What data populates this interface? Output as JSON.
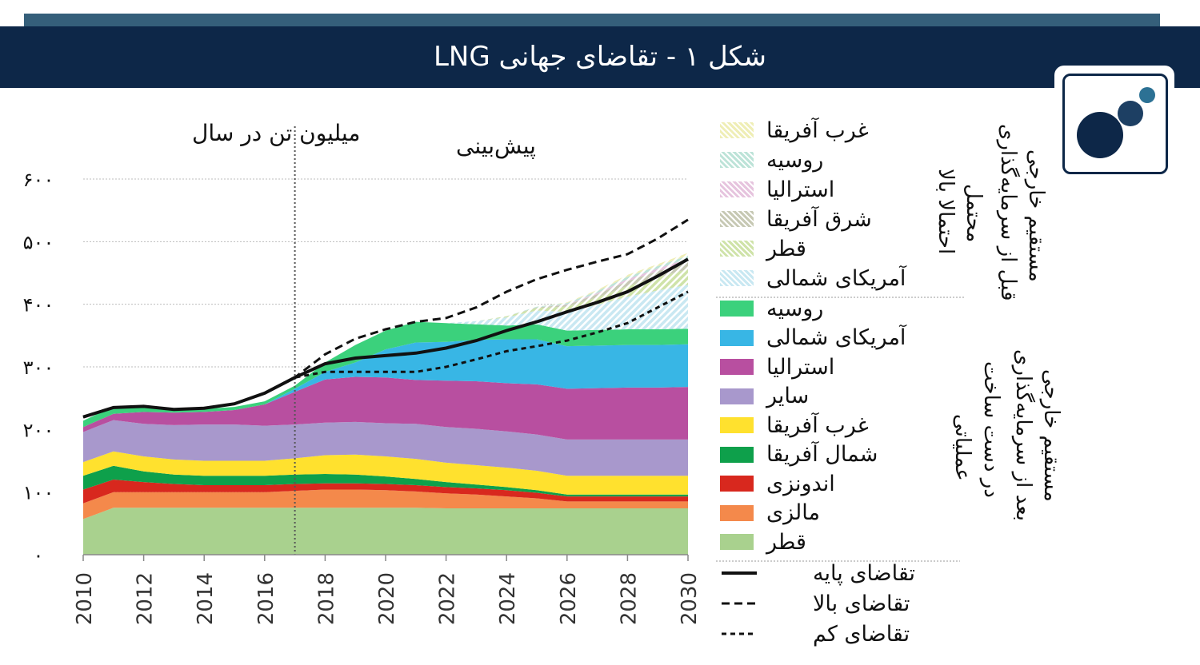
{
  "header": {
    "title": "شکل ۱ - تقاضای جهانی LNG"
  },
  "logo": {
    "name": "publisher-logo"
  },
  "colors": {
    "banner": "#0d2748",
    "accent": "#355f7a"
  },
  "chart_data": {
    "type": "area",
    "title": "شکل ۱ - تقاضای جهانی LNG",
    "ylabel": "میلیون تن در سال",
    "forecast_label": "پیش‌بینی",
    "forecast_start": 2017,
    "ylim": [
      0,
      600
    ],
    "yticks": [
      0,
      100,
      200,
      300,
      400,
      500,
      600
    ],
    "ytick_labels": [
      "۰",
      "۱۰۰",
      "۲۰۰",
      "۳۰۰",
      "۴۰۰",
      "۵۰۰",
      "۶۰۰"
    ],
    "x": [
      2010,
      2011,
      2012,
      2013,
      2014,
      2015,
      2016,
      2017,
      2018,
      2019,
      2020,
      2021,
      2022,
      2023,
      2024,
      2025,
      2026,
      2027,
      2028,
      2029,
      2030
    ],
    "xticks": [
      2010,
      2012,
      2014,
      2016,
      2018,
      2020,
      2022,
      2024,
      2026,
      2028,
      2030
    ],
    "xtick_labels": [
      "2010",
      "2012",
      "2014",
      "2016",
      "2018",
      "2020",
      "2022",
      "2024",
      "2026",
      "2028",
      "2030"
    ],
    "group_labels": {
      "pre_fid_left": "احتمالا بالا",
      "pre_fid_right": "محتمل",
      "pre_fid_outer": [
        "قبل از سرمایه‌گذاری",
        "مستقیم خارجی"
      ],
      "post_fid_left": "عملیاتی",
      "post_fid_right": "در دست ساخت",
      "post_fid_outer": [
        "بعد از سرمایه‌گذاری",
        "مستقیم خارجی"
      ]
    },
    "series": [
      {
        "name": "قطر",
        "group": "operational",
        "color": "#a9d18e",
        "values": [
          57,
          75,
          75,
          75,
          75,
          75,
          75,
          75,
          75,
          75,
          75,
          75,
          74,
          74,
          74,
          74,
          74,
          74,
          74,
          74,
          74
        ]
      },
      {
        "name": "مالزی",
        "group": "operational",
        "color": "#f4894b",
        "values": [
          25,
          25,
          25,
          25,
          25,
          25,
          25,
          27,
          29,
          29,
          28,
          26,
          24,
          22,
          19,
          16,
          11,
          11,
          11,
          11,
          11
        ]
      },
      {
        "name": "اندونزی",
        "group": "operational",
        "color": "#d8281e",
        "values": [
          22,
          20,
          16,
          13,
          11,
          11,
          11,
          11,
          10,
          10,
          10,
          10,
          10,
          10,
          10,
          9,
          8,
          8,
          8,
          8,
          8
        ]
      },
      {
        "name": "شمال آفریقا",
        "group": "operational",
        "color": "#0ea04b",
        "values": [
          22,
          22,
          17,
          15,
          15,
          15,
          15,
          15,
          15,
          14,
          12,
          10,
          8,
          6,
          5,
          4,
          3,
          3,
          3,
          3,
          3
        ]
      },
      {
        "name": "غرب آفریقا",
        "group": "operational",
        "color": "#ffe12e",
        "values": [
          22,
          23,
          24,
          24,
          24,
          24,
          24,
          26,
          30,
          32,
          32,
          32,
          31,
          31,
          31,
          31,
          30,
          30,
          30,
          30,
          30
        ]
      },
      {
        "name": "سایر",
        "group": "operational",
        "color": "#a898cc",
        "values": [
          48,
          50,
          52,
          55,
          58,
          58,
          56,
          54,
          52,
          52,
          53,
          56,
          57,
          58,
          58,
          58,
          58,
          58,
          58,
          58,
          58
        ]
      },
      {
        "name": "استرالیا",
        "group": "operational",
        "color": "#b84fa0",
        "values": [
          8,
          10,
          19,
          20,
          20,
          23,
          34,
          52,
          69,
          72,
          73,
          70,
          74,
          76,
          77,
          80,
          81,
          82,
          83,
          83,
          84
        ]
      },
      {
        "name": "آمریکای شمالی",
        "group": "operational",
        "color": "#38b6e5",
        "values": [
          0,
          0,
          0,
          0,
          0,
          0,
          0,
          5,
          12,
          23,
          45,
          60,
          62,
          66,
          70,
          72,
          68,
          68,
          68,
          68,
          68
        ]
      },
      {
        "name": "روسیه",
        "group": "operational",
        "color": "#3bd17c",
        "values": [
          10,
          12,
          9,
          6,
          5,
          5,
          5,
          5,
          15,
          28,
          30,
          33,
          30,
          25,
          22,
          24,
          25,
          25,
          25,
          25,
          25
        ]
      },
      {
        "name": "آمریکای شمالی",
        "group": "pre_fid",
        "color": "#c9e8f2",
        "hatch": true,
        "values": [
          0,
          0,
          0,
          0,
          0,
          0,
          0,
          0,
          0,
          0,
          0,
          0,
          0,
          5,
          13,
          22,
          30,
          40,
          52,
          62,
          70
        ]
      },
      {
        "name": "قطر",
        "group": "pre_fid",
        "color": "#cfe3a9",
        "hatch": true,
        "values": [
          0,
          0,
          0,
          0,
          0,
          0,
          0,
          0,
          0,
          0,
          0,
          0,
          0,
          0,
          2,
          4,
          8,
          12,
          17,
          21,
          25
        ]
      },
      {
        "name": "شرق آفریقا",
        "group": "pre_fid",
        "color": "#c7c9b4",
        "hatch": true,
        "values": [
          0,
          0,
          0,
          0,
          0,
          0,
          0,
          0,
          0,
          0,
          0,
          0,
          0,
          0,
          0,
          1,
          3,
          5,
          8,
          10,
          12
        ]
      },
      {
        "name": "استرالیا",
        "group": "pre_fid",
        "color": "#e6c4de",
        "hatch": true,
        "values": [
          0,
          0,
          0,
          0,
          0,
          0,
          0,
          0,
          0,
          0,
          0,
          0,
          0,
          0,
          0,
          0,
          1,
          2,
          3,
          4,
          5
        ]
      },
      {
        "name": "روسیه",
        "group": "pre_fid",
        "color": "#bde3d8",
        "hatch": true,
        "values": [
          0,
          0,
          0,
          0,
          0,
          0,
          0,
          0,
          0,
          0,
          0,
          0,
          0,
          0,
          0,
          1,
          2,
          3,
          4,
          4,
          5
        ]
      },
      {
        "name": "غرب آفریقا",
        "group": "pre_fid",
        "color": "#efeeb6",
        "hatch": true,
        "values": [
          0,
          0,
          0,
          0,
          0,
          0,
          0,
          0,
          0,
          0,
          0,
          0,
          0,
          0,
          0,
          0,
          1,
          2,
          3,
          3,
          4
        ]
      }
    ],
    "lines": [
      {
        "name": "تقاضای پایه",
        "style": "solid",
        "values": [
          220,
          235,
          237,
          232,
          234,
          241,
          258,
          283,
          305,
          314,
          318,
          322,
          330,
          342,
          358,
          372,
          388,
          403,
          420,
          445,
          472
        ]
      },
      {
        "name": "تقاضای بالا",
        "style": "dashed",
        "values": [
          220,
          235,
          237,
          232,
          234,
          241,
          258,
          283,
          320,
          345,
          360,
          372,
          378,
          395,
          420,
          440,
          455,
          468,
          480,
          505,
          535
        ]
      },
      {
        "name": "تقاضای کم",
        "style": "dotted",
        "values": [
          220,
          235,
          237,
          232,
          234,
          241,
          258,
          283,
          292,
          292,
          292,
          292,
          300,
          312,
          325,
          333,
          342,
          355,
          370,
          395,
          420
        ]
      }
    ]
  },
  "legend": {
    "pre_fid_items": [
      {
        "label": "غرب آفریقا",
        "color": "#efeeb6",
        "hatch": true
      },
      {
        "label": "روسیه",
        "color": "#bde3d8",
        "hatch": true
      },
      {
        "label": "استرالیا",
        "color": "#e6c4de",
        "hatch": true
      },
      {
        "label": "شرق آفریقا",
        "color": "#c7c9b4",
        "hatch": true
      },
      {
        "label": "قطر",
        "color": "#cfe3a9",
        "hatch": true
      },
      {
        "label": "آمریکای شمالی",
        "color": "#c9e8f2",
        "hatch": true
      }
    ],
    "post_fid_items": [
      {
        "label": "روسیه",
        "color": "#3bd17c"
      },
      {
        "label": "آمریکای شمالی",
        "color": "#38b6e5"
      },
      {
        "label": "استرالیا",
        "color": "#b84fa0"
      },
      {
        "label": "سایر",
        "color": "#a898cc"
      },
      {
        "label": "غرب آفریقا",
        "color": "#ffe12e"
      },
      {
        "label": "شمال آفریقا",
        "color": "#0ea04b"
      },
      {
        "label": "اندونزی",
        "color": "#d8281e"
      },
      {
        "label": "مالزی",
        "color": "#f4894b"
      },
      {
        "label": "قطر",
        "color": "#a9d18e"
      }
    ],
    "line_items": [
      {
        "label": "تقاضای پایه",
        "style": "solid"
      },
      {
        "label": "تقاضای بالا",
        "style": "dashed"
      },
      {
        "label": "تقاضای کم",
        "style": "dotted"
      }
    ]
  }
}
